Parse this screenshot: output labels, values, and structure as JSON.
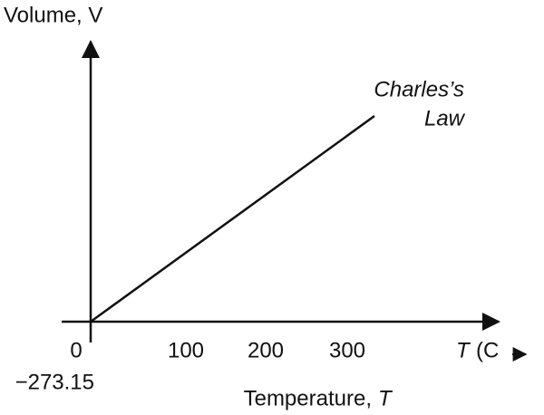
{
  "y_axis": {
    "title": "Volume, V"
  },
  "x_axis": {
    "title": "Temperature,",
    "title_symbol": "T",
    "unit_symbol": "T",
    "unit": "(C",
    "ticks": [
      "0",
      "100",
      "200",
      "300"
    ],
    "origin_label": "−273.15"
  },
  "line_label": {
    "line1": "Charles’s",
    "line2": "Law"
  }
}
